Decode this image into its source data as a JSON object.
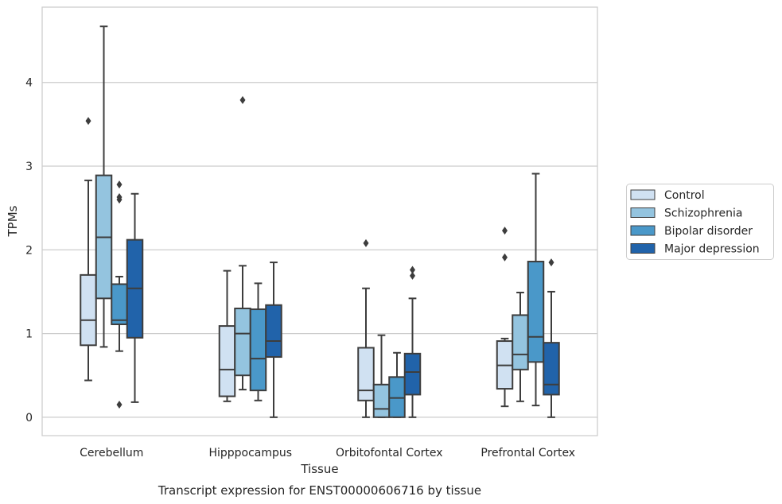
{
  "caption": "Transcript expression for ENST00000606716 by tissue",
  "chart_data": {
    "type": "box",
    "xlabel": "Tissue",
    "ylabel": "TPMs",
    "ylim": [
      -0.22,
      4.9
    ],
    "yticks": [
      0,
      1,
      2,
      3,
      4
    ],
    "grid": "horizontal",
    "legend_position": "right",
    "categories": [
      "Cerebellum",
      "Hipppocampus",
      "Orbitofontal Cortex",
      "Prefrontal Cortex"
    ],
    "series": [
      {
        "name": "Control",
        "color": "#d0e1f2",
        "boxes": [
          {
            "whislo": 0.44,
            "q1": 0.86,
            "med": 1.16,
            "q3": 1.7,
            "whishi": 2.83,
            "fliers": [
              3.54
            ]
          },
          {
            "whislo": 0.19,
            "q1": 0.25,
            "med": 0.57,
            "q3": 1.09,
            "whishi": 1.75,
            "fliers": []
          },
          {
            "whislo": 0.0,
            "q1": 0.2,
            "med": 0.32,
            "q3": 0.83,
            "whishi": 1.54,
            "fliers": [
              2.08
            ]
          },
          {
            "whislo": 0.13,
            "q1": 0.34,
            "med": 0.62,
            "q3": 0.91,
            "whishi": 0.94,
            "fliers": [
              1.91,
              2.23
            ]
          }
        ]
      },
      {
        "name": "Schizophrenia",
        "color": "#94c4df",
        "boxes": [
          {
            "whislo": 0.84,
            "q1": 1.42,
            "med": 2.15,
            "q3": 2.89,
            "whishi": 4.67,
            "fliers": []
          },
          {
            "whislo": 0.33,
            "q1": 0.5,
            "med": 1.0,
            "q3": 1.3,
            "whishi": 1.81,
            "fliers": [
              3.79
            ]
          },
          {
            "whislo": 0.0,
            "q1": 0.0,
            "med": 0.1,
            "q3": 0.39,
            "whishi": 0.98,
            "fliers": []
          },
          {
            "whislo": 0.19,
            "q1": 0.57,
            "med": 0.75,
            "q3": 1.22,
            "whishi": 1.49,
            "fliers": []
          }
        ]
      },
      {
        "name": "Bipolar disorder",
        "color": "#4a98c9",
        "boxes": [
          {
            "whislo": 0.79,
            "q1": 1.11,
            "med": 1.16,
            "q3": 1.59,
            "whishi": 1.68,
            "fliers": [
              0.15,
              2.6,
              2.63,
              2.78
            ]
          },
          {
            "whislo": 0.2,
            "q1": 0.32,
            "med": 0.7,
            "q3": 1.29,
            "whishi": 1.6,
            "fliers": []
          },
          {
            "whislo": 0.0,
            "q1": 0.0,
            "med": 0.23,
            "q3": 0.48,
            "whishi": 0.77,
            "fliers": []
          },
          {
            "whislo": 0.14,
            "q1": 0.66,
            "med": 0.96,
            "q3": 1.86,
            "whishi": 2.91,
            "fliers": []
          }
        ]
      },
      {
        "name": "Major depression",
        "color": "#2163aa",
        "boxes": [
          {
            "whislo": 0.18,
            "q1": 0.95,
            "med": 1.54,
            "q3": 2.12,
            "whishi": 2.67,
            "fliers": []
          },
          {
            "whislo": 0.0,
            "q1": 0.72,
            "med": 0.91,
            "q3": 1.34,
            "whishi": 1.85,
            "fliers": []
          },
          {
            "whislo": 0.0,
            "q1": 0.27,
            "med": 0.54,
            "q3": 0.76,
            "whishi": 1.42,
            "fliers": [
              1.69,
              1.76
            ]
          },
          {
            "whislo": 0.0,
            "q1": 0.27,
            "med": 0.39,
            "q3": 0.89,
            "whishi": 1.5,
            "fliers": [
              1.85
            ]
          }
        ]
      }
    ]
  }
}
